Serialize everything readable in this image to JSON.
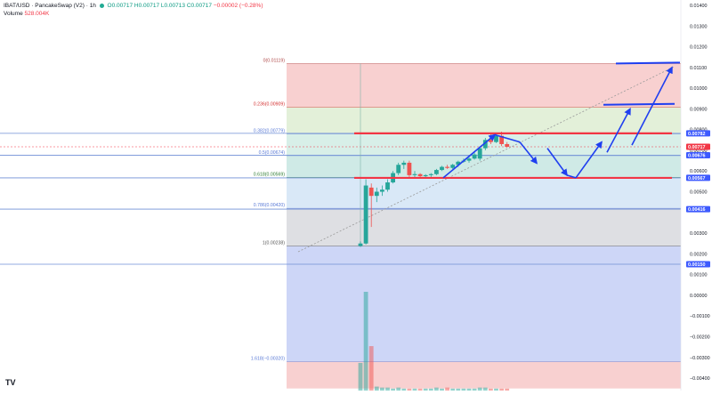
{
  "legend": {
    "symbol": "IBAT/USD · PancakeSwap (V2) · 1h",
    "ohlc": "O0.00717 H0.00717 L0.00713 C0.00717 ",
    "change": "−0.00002 (−0.28%)",
    "volume_label": "Volume",
    "volume_value": "528.004K"
  },
  "logo_text": "TV",
  "colors": {
    "up": "#26a69a",
    "down": "#ef5350",
    "drawing_blue": "#1f3ff0",
    "drawing_red": "#f23645",
    "level_line": "#6f8fd6"
  },
  "price_axis": {
    "min": -0.0045,
    "max": 0.0145,
    "ticks": [
      "0.01400",
      "0.01300",
      "0.01200",
      "0.01100",
      "0.01000",
      "0.00900",
      "0.00800",
      "0.00700",
      "0.00600",
      "0.00500",
      "0.00300",
      "0.00200",
      "0.00100",
      "0.00000",
      "−0.00100",
      "−0.00200",
      "−0.00300",
      "−0.00400"
    ],
    "tick_values": [
      0.014,
      0.013,
      0.012,
      0.011,
      0.01,
      0.009,
      0.008,
      0.007,
      0.006,
      0.005,
      0.003,
      0.002,
      0.001,
      0.0,
      -0.001,
      -0.002,
      -0.003,
      -0.004
    ],
    "badges": [
      {
        "text": "0.00782",
        "value": 0.00782,
        "bg": "#3d5afe",
        "fg": "#ffffff"
      },
      {
        "text": "0.00717",
        "value": 0.00717,
        "bg": "#f23645",
        "fg": "#ffffff"
      },
      {
        "text": "0.00676",
        "value": 0.00676,
        "bg": "#3d5afe",
        "fg": "#ffffff"
      },
      {
        "text": "0.00567",
        "value": 0.00567,
        "bg": "#3d5afe",
        "fg": "#ffffff"
      },
      {
        "text": "0.00416",
        "value": 0.00416,
        "bg": "#3d5afe",
        "fg": "#ffffff"
      },
      {
        "text": "0.00150",
        "value": 0.0015,
        "bg": "#3d5afe",
        "fg": "#ffffff"
      }
    ]
  },
  "fib_levels": [
    {
      "label": "0(0.01119)",
      "value": 0.01119,
      "color": "#b04a4a"
    },
    {
      "label": "0.236(0.00909)",
      "value": 0.00909,
      "color": "#d32f2f"
    },
    {
      "label": "0.382(0.00779)",
      "value": 0.00779,
      "color": "#5a7ad6"
    },
    {
      "label": "0.5(0.00674)",
      "value": 0.00674,
      "color": "#5a7ad6"
    },
    {
      "label": "0.618(0.00569)",
      "value": 0.00569,
      "color": "#2e7d32"
    },
    {
      "label": "0.786(0.00420)",
      "value": 0.0042,
      "color": "#5a7ad6"
    },
    {
      "label": "1(0.00238)",
      "value": 0.00238,
      "color": "#555555"
    },
    {
      "label": "1.618(−0.00320)",
      "value": -0.0032,
      "color": "#5a7ad6"
    }
  ],
  "horizontal_levels": [
    0.00782,
    0.00676,
    0.00567,
    0.00416,
    0.0015
  ],
  "chart_data": {
    "type": "candlestick",
    "candles": [
      {
        "o": 0.00238,
        "h": 0.0026,
        "l": 0.00233,
        "c": 0.0025
      },
      {
        "o": 0.0025,
        "h": 0.0056,
        "l": 0.00245,
        "c": 0.0053
      },
      {
        "o": 0.0052,
        "h": 0.0054,
        "l": 0.0033,
        "c": 0.0048
      },
      {
        "o": 0.0048,
        "h": 0.0052,
        "l": 0.0045,
        "c": 0.005
      },
      {
        "o": 0.005,
        "h": 0.0053,
        "l": 0.0048,
        "c": 0.0051
      },
      {
        "o": 0.0051,
        "h": 0.0056,
        "l": 0.005,
        "c": 0.00545
      },
      {
        "o": 0.00545,
        "h": 0.006,
        "l": 0.0054,
        "c": 0.0059
      },
      {
        "o": 0.0059,
        "h": 0.0064,
        "l": 0.0058,
        "c": 0.0063
      },
      {
        "o": 0.0063,
        "h": 0.0065,
        "l": 0.0061,
        "c": 0.0064
      },
      {
        "o": 0.0064,
        "h": 0.0065,
        "l": 0.0057,
        "c": 0.0058
      },
      {
        "o": 0.0058,
        "h": 0.006,
        "l": 0.0057,
        "c": 0.00585
      },
      {
        "o": 0.00585,
        "h": 0.0059,
        "l": 0.0057,
        "c": 0.00575
      },
      {
        "o": 0.00575,
        "h": 0.00585,
        "l": 0.00565,
        "c": 0.0058
      },
      {
        "o": 0.0058,
        "h": 0.0059,
        "l": 0.0057,
        "c": 0.00585
      },
      {
        "o": 0.00585,
        "h": 0.0061,
        "l": 0.0058,
        "c": 0.00605
      },
      {
        "o": 0.00605,
        "h": 0.00625,
        "l": 0.006,
        "c": 0.0062
      },
      {
        "o": 0.0062,
        "h": 0.0063,
        "l": 0.0061,
        "c": 0.00615
      },
      {
        "o": 0.00615,
        "h": 0.00635,
        "l": 0.0061,
        "c": 0.0063
      },
      {
        "o": 0.0063,
        "h": 0.0065,
        "l": 0.0062,
        "c": 0.00645
      },
      {
        "o": 0.00645,
        "h": 0.0066,
        "l": 0.0064,
        "c": 0.0065
      },
      {
        "o": 0.0065,
        "h": 0.0067,
        "l": 0.0064,
        "c": 0.0066
      },
      {
        "o": 0.0066,
        "h": 0.0069,
        "l": 0.00655,
        "c": 0.0068
      },
      {
        "o": 0.0066,
        "h": 0.0072,
        "l": 0.0065,
        "c": 0.0071
      },
      {
        "o": 0.0071,
        "h": 0.0076,
        "l": 0.007,
        "c": 0.0075
      },
      {
        "o": 0.0075,
        "h": 0.0078,
        "l": 0.0073,
        "c": 0.0074
      },
      {
        "o": 0.0074,
        "h": 0.0078,
        "l": 0.00735,
        "c": 0.0077
      },
      {
        "o": 0.0077,
        "h": 0.0079,
        "l": 0.0072,
        "c": 0.0073
      },
      {
        "o": 0.0073,
        "h": 0.0074,
        "l": 0.00713,
        "c": 0.00717
      }
    ],
    "volumes": [
      0.28,
      1.0,
      0.45,
      0.04,
      0.03,
      0.03,
      0.02,
      0.03,
      0.02,
      0.02,
      0.02,
      0.02,
      0.02,
      0.02,
      0.03,
      0.02,
      0.03,
      0.02,
      0.02,
      0.02,
      0.02,
      0.02,
      0.03,
      0.03,
      0.02,
      0.02,
      0.02,
      0.02
    ]
  }
}
